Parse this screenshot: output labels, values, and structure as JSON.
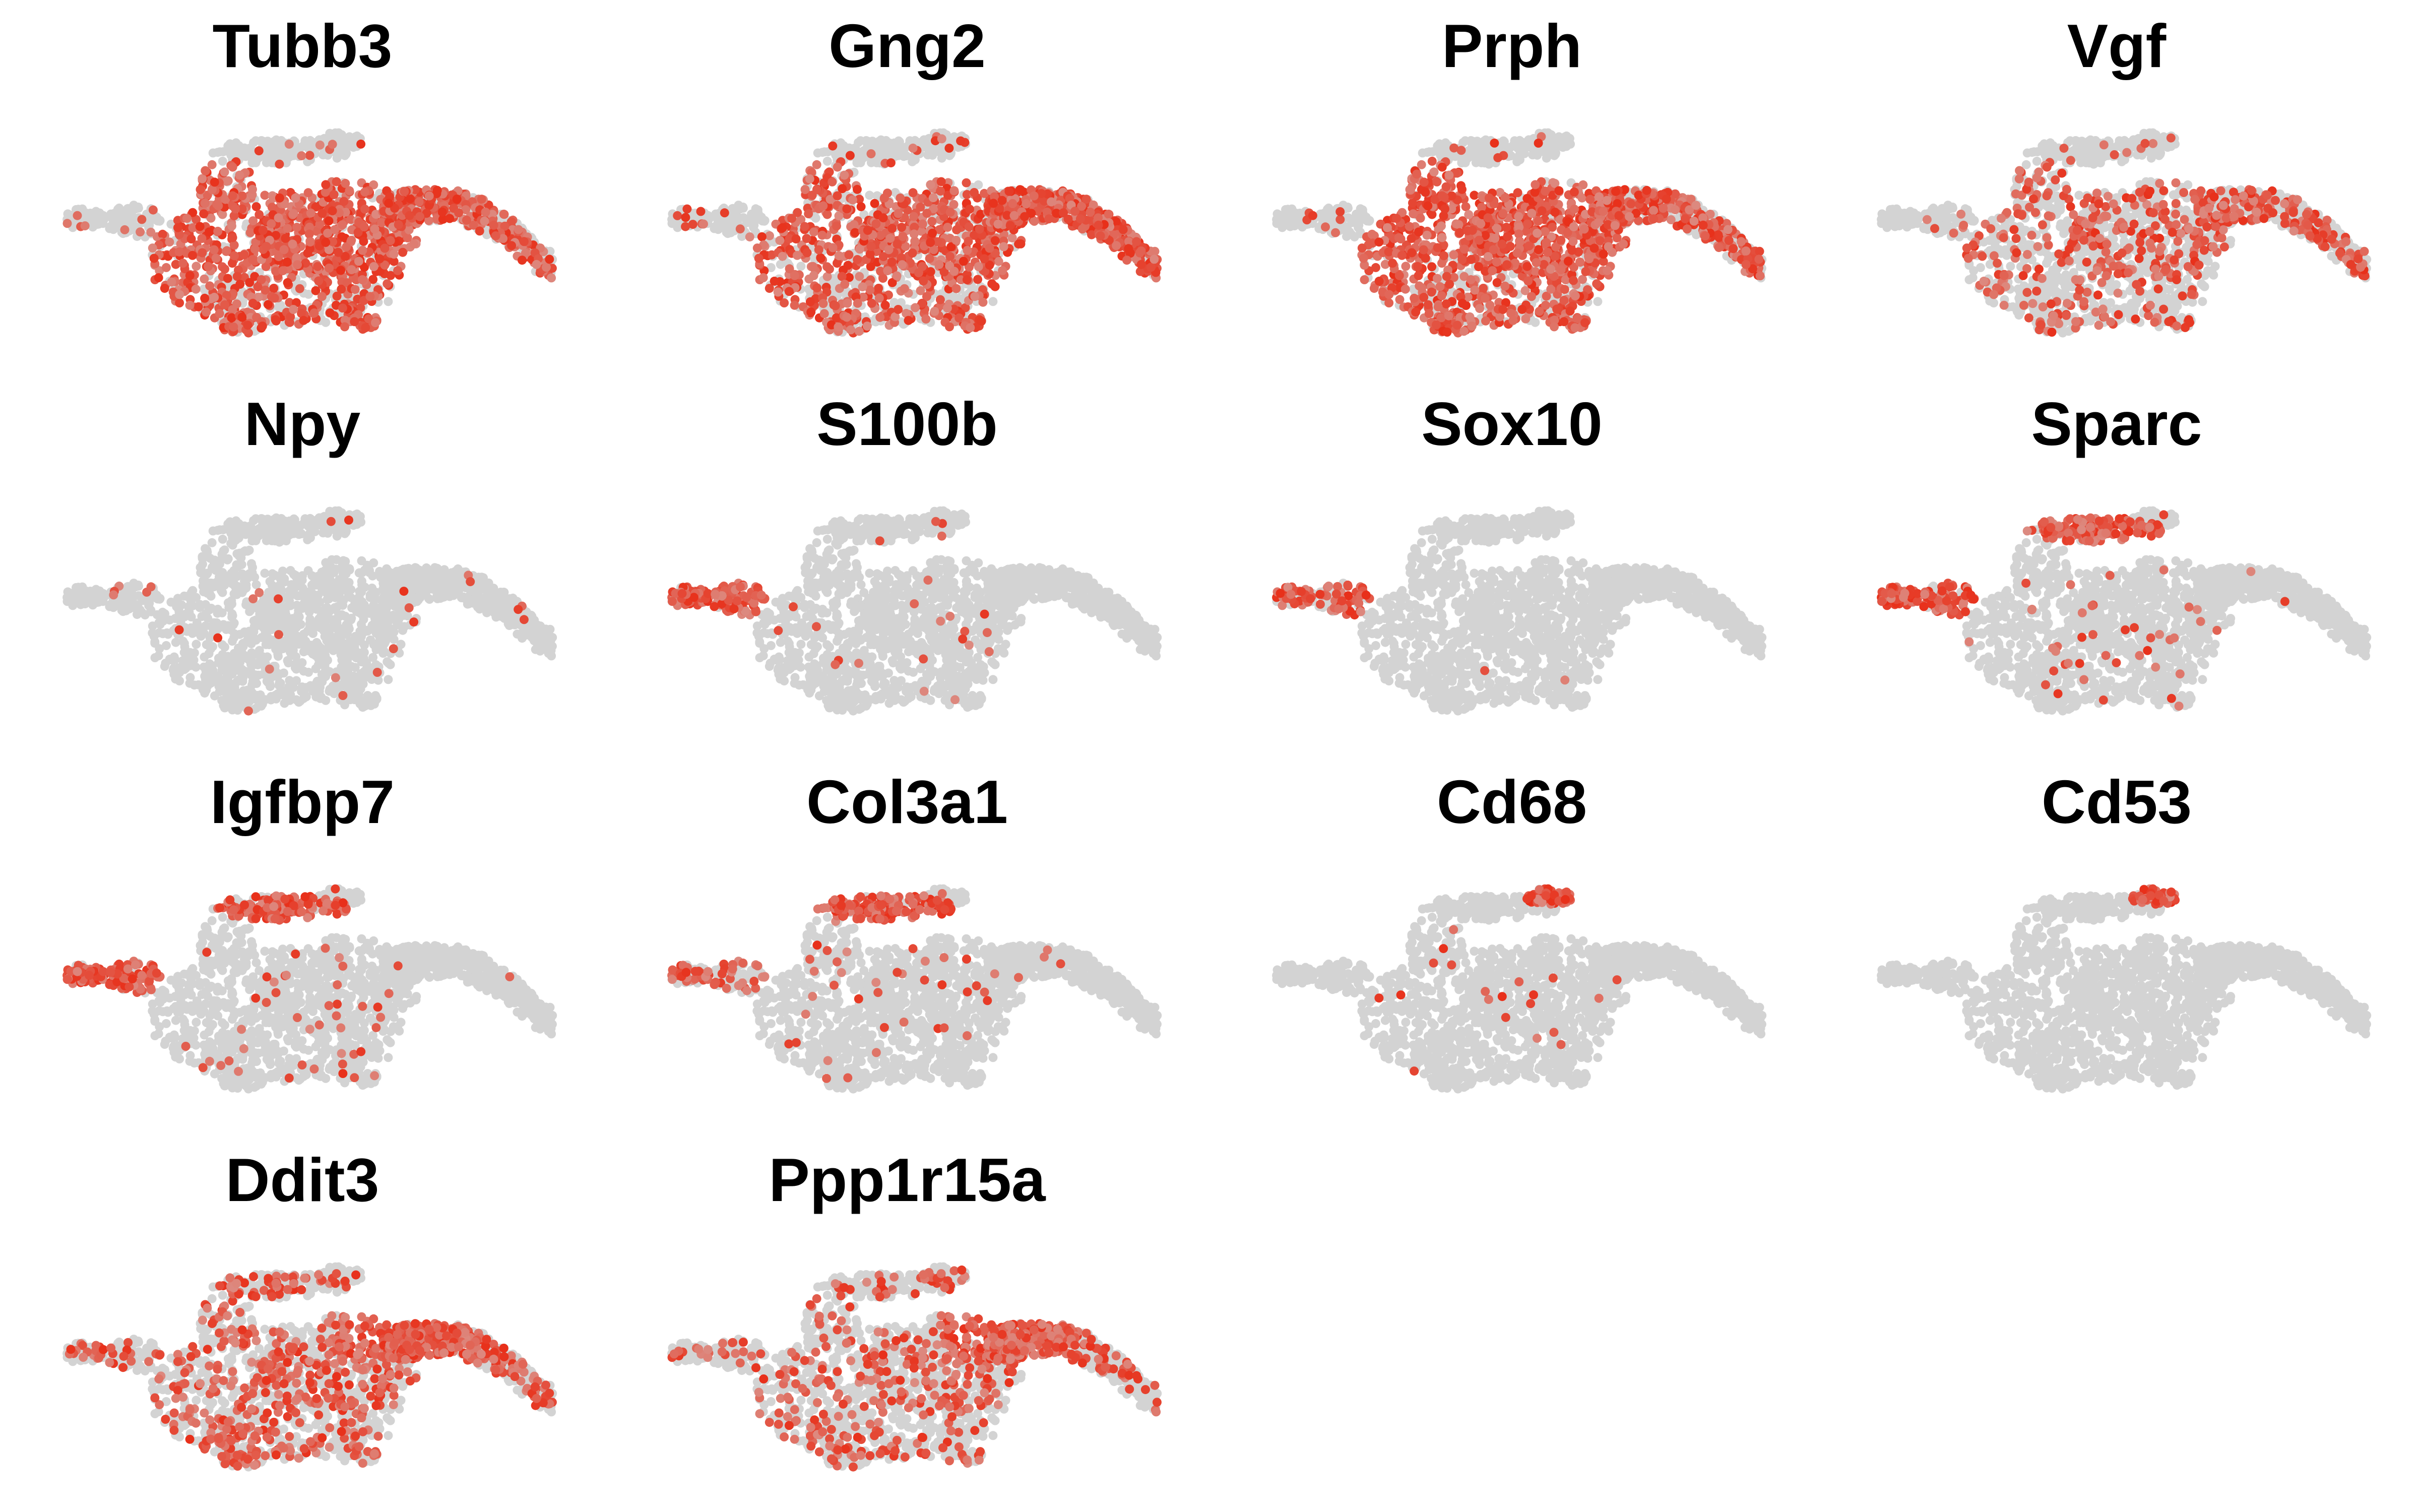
{
  "chart_data": {
    "type": "scatter",
    "description_layout": "4-column grid of feature plots on a shared 2D embedding",
    "axes_visible": false,
    "grid": false,
    "legend": "none",
    "colors": {
      "low": "#d3d3d3",
      "high": "#e8301a"
    },
    "expression_scale": [
      0,
      1
    ],
    "panels": [
      {
        "title": "Tubb3",
        "pattern": {
          "main": 0.85,
          "right": 0.55,
          "top": 0.05,
          "left": 0.05,
          "lobe": 0.05,
          "base": 0.08
        }
      },
      {
        "title": "Gng2",
        "pattern": {
          "main": 0.7,
          "right": 0.8,
          "top": 0.05,
          "left": 0.05,
          "lobe": 0.05,
          "base": 0.08
        }
      },
      {
        "title": "Prph",
        "pattern": {
          "main": 0.9,
          "right": 0.6,
          "top": 0.05,
          "left": 0.05,
          "lobe": 0.05,
          "base": 0.08
        }
      },
      {
        "title": "Vgf",
        "pattern": {
          "main": 0.3,
          "right": 0.35,
          "top": 0.03,
          "left": 0.03,
          "lobe": 0.03,
          "base": 0.05
        }
      },
      {
        "title": "Npy",
        "pattern": {
          "main": 0.02,
          "right": 0.01,
          "top": 0.01,
          "left": 0.01,
          "lobe": 0.01,
          "base": 0.02
        }
      },
      {
        "title": "S100b",
        "pattern": {
          "main": 0.01,
          "right": 0.0,
          "top": 0.01,
          "left": 0.9,
          "lobe": 0.02,
          "base": 0.01
        }
      },
      {
        "title": "Sox10",
        "pattern": {
          "main": 0.0,
          "right": 0.0,
          "top": 0.0,
          "left": 0.55,
          "lobe": 0.0,
          "base": 0.01
        }
      },
      {
        "title": "Sparc",
        "pattern": {
          "main": 0.03,
          "right": 0.01,
          "top": 0.9,
          "left": 0.8,
          "lobe": 0.05,
          "base": 0.03
        }
      },
      {
        "title": "Igfbp7",
        "pattern": {
          "main": 0.04,
          "right": 0.02,
          "top": 0.85,
          "left": 0.85,
          "lobe": 0.05,
          "base": 0.04
        }
      },
      {
        "title": "Col3a1",
        "pattern": {
          "main": 0.03,
          "right": 0.01,
          "top": 0.9,
          "left": 0.4,
          "lobe": 0.02,
          "base": 0.03
        }
      },
      {
        "title": "Cd68",
        "pattern": {
          "main": 0.01,
          "right": 0.0,
          "top": 0.0,
          "left": 0.0,
          "lobe": 0.85,
          "base": 0.01
        }
      },
      {
        "title": "Cd53",
        "pattern": {
          "main": 0.0,
          "right": 0.0,
          "top": 0.0,
          "left": 0.0,
          "lobe": 0.85,
          "base": 0.0
        }
      },
      {
        "title": "Ddit3",
        "pattern": {
          "main": 0.35,
          "right": 0.3,
          "top": 0.25,
          "left": 0.25,
          "lobe": 0.2,
          "base": 0.3,
          "hot": 0.9
        }
      },
      {
        "title": "Ppp1r15a",
        "pattern": {
          "main": 0.25,
          "right": 0.25,
          "top": 0.2,
          "left": 0.2,
          "lobe": 0.2,
          "base": 0.25,
          "hot": 0.95
        }
      }
    ]
  }
}
